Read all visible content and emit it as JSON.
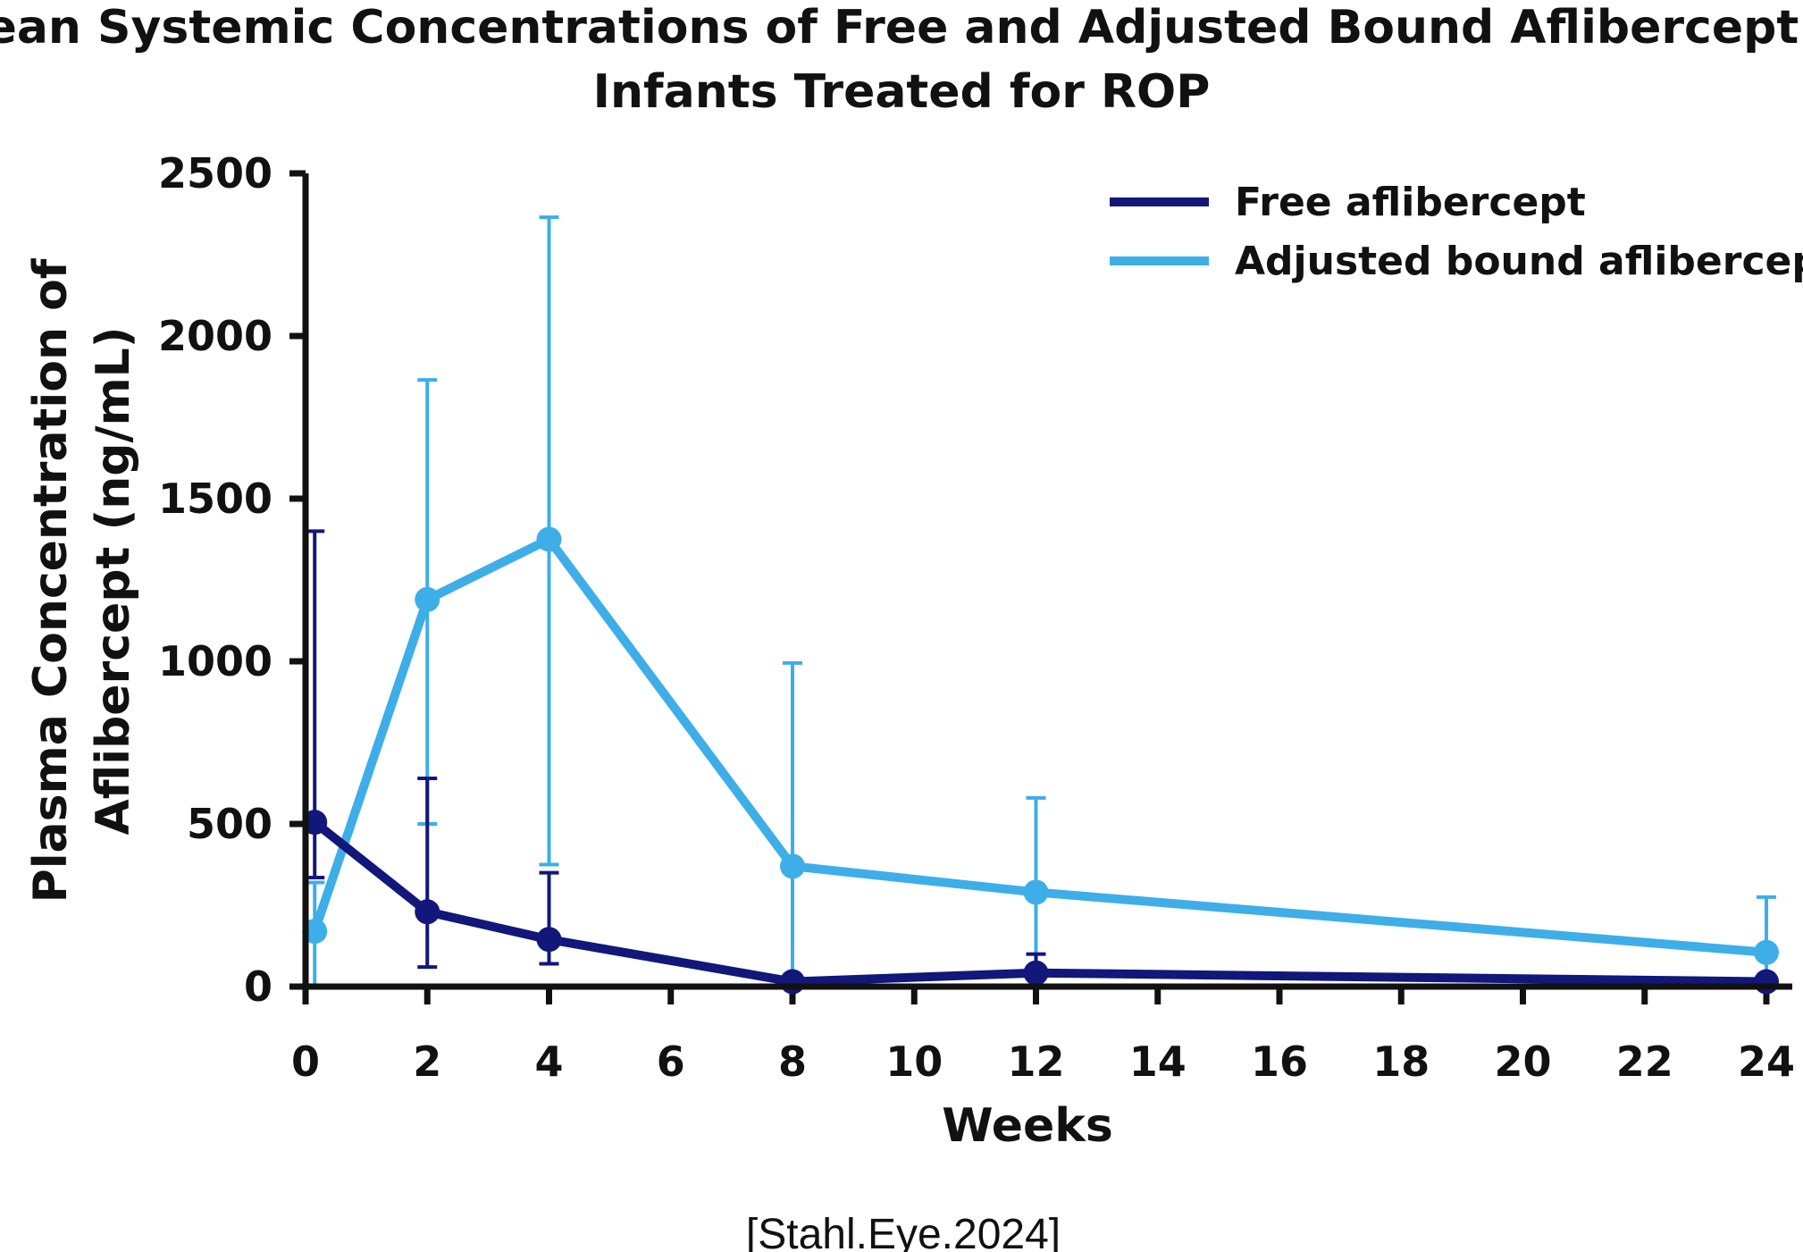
{
  "chart_data": {
    "type": "line",
    "title": "Mean Systemic Concentrations of Free and Adjusted Bound Aflibercept in Infants Treated for ROP",
    "title_lines": [
      "Mean Systemic Concentrations of Free and Adjusted Bound Aflibercept in",
      "Infants Treated for ROP"
    ],
    "xlabel": "Weeks",
    "ylabel": "Plasma Concentration of Aflibercept (ng/mL)",
    "ylabel_lines": [
      "Plasma Concentration of",
      "Aflibercept (ng/mL)"
    ],
    "xlim": [
      0,
      24
    ],
    "ylim": [
      0,
      2500
    ],
    "xticks": [
      0,
      2,
      4,
      6,
      8,
      10,
      12,
      14,
      16,
      18,
      20,
      22,
      24
    ],
    "yticks": [
      0,
      500,
      1000,
      1500,
      2000,
      2500
    ],
    "grid": false,
    "legend_position": "top-right",
    "series": [
      {
        "name": "Free aflibercept",
        "color": "#12177a",
        "x": [
          0.15,
          2,
          4,
          8,
          12,
          24
        ],
        "y": [
          505,
          230,
          145,
          15,
          42,
          15
        ],
        "error_upper": [
          1400,
          640,
          350,
          15,
          100,
          15
        ],
        "error_lower": [
          335,
          60,
          70,
          15,
          42,
          15
        ]
      },
      {
        "name": "Adjusted bound aflibercept",
        "color": "#3eaee8",
        "x": [
          0.15,
          2,
          4,
          8,
          12,
          24
        ],
        "y": [
          170,
          1190,
          1375,
          370,
          290,
          105
        ],
        "error_upper": [
          320,
          1865,
          2365,
          995,
          580,
          275
        ],
        "error_lower": [
          0,
          500,
          375,
          0,
          0,
          0
        ]
      }
    ]
  },
  "citation": "[Stahl.Eye.2024]"
}
